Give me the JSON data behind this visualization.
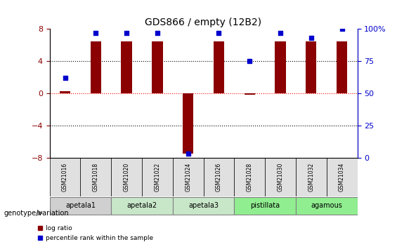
{
  "title": "GDS866 / empty (12B2)",
  "samples": [
    "GSM21016",
    "GSM21018",
    "GSM21020",
    "GSM21022",
    "GSM21024",
    "GSM21026",
    "GSM21028",
    "GSM21030",
    "GSM21032",
    "GSM21034"
  ],
  "log_ratio": [
    0.3,
    6.5,
    6.5,
    6.5,
    -7.5,
    6.5,
    -0.2,
    6.5,
    6.5,
    6.5
  ],
  "percentile_rank": [
    62,
    97,
    97,
    97,
    3,
    97,
    75,
    97,
    93,
    100
  ],
  "bar_color": "#8B0000",
  "dot_color": "#0000CD",
  "ylim_left": [
    -8,
    8
  ],
  "ylim_right": [
    0,
    100
  ],
  "yticks_left": [
    -8,
    -4,
    0,
    4,
    8
  ],
  "yticks_right": [
    0,
    25,
    50,
    75,
    100
  ],
  "hlines": [
    0,
    4,
    -4
  ],
  "hline_colors": [
    "red",
    "black",
    "black"
  ],
  "hline_styles": [
    "dotted",
    "dotted",
    "dotted"
  ],
  "groups": [
    {
      "label": "apetala1",
      "samples": [
        "GSM21016",
        "GSM21018"
      ],
      "color": "#d0d0d0"
    },
    {
      "label": "apetala2",
      "samples": [
        "GSM21020",
        "GSM21022"
      ],
      "color": "#c8e6c8"
    },
    {
      "label": "apetala3",
      "samples": [
        "GSM21024",
        "GSM21026"
      ],
      "color": "#c8e6c8"
    },
    {
      "label": "pistillata",
      "samples": [
        "GSM21028",
        "GSM21030"
      ],
      "color": "#90EE90"
    },
    {
      "label": "agamous",
      "samples": [
        "GSM21032",
        "GSM21034"
      ],
      "color": "#90EE90"
    }
  ],
  "legend_items": [
    {
      "label": "log ratio",
      "color": "#8B0000",
      "marker": "s"
    },
    {
      "label": "percentile rank within the sample",
      "color": "#0000CD",
      "marker": "s"
    }
  ],
  "left_label_color": "#8B0000",
  "right_label_color": "#0000CD",
  "genotype_label": "genotype/variation"
}
